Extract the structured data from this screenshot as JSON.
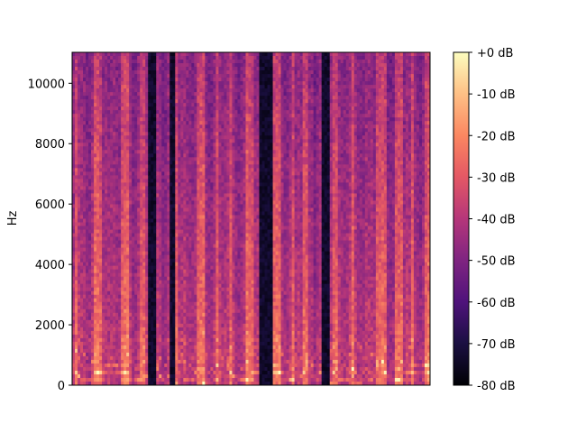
{
  "chart_data": {
    "type": "heatmap",
    "title": "",
    "xlabel": "",
    "ylabel": "Hz",
    "ylim": [
      0,
      11025
    ],
    "yticks": [
      0,
      2000,
      4000,
      6000,
      8000,
      10000
    ],
    "xticks": [],
    "colormap": "magma",
    "colorbar": {
      "range_db": [
        -80,
        0
      ],
      "tick_values": [
        0,
        -10,
        -20,
        -30,
        -40,
        -50,
        -60,
        -70,
        -80
      ],
      "tick_labels": [
        "+0 dB",
        "-10 dB",
        "-20 dB",
        "-30 dB",
        "-40 dB",
        "-50 dB",
        "-60 dB",
        "-70 dB",
        "-80 dB"
      ]
    }
  }
}
